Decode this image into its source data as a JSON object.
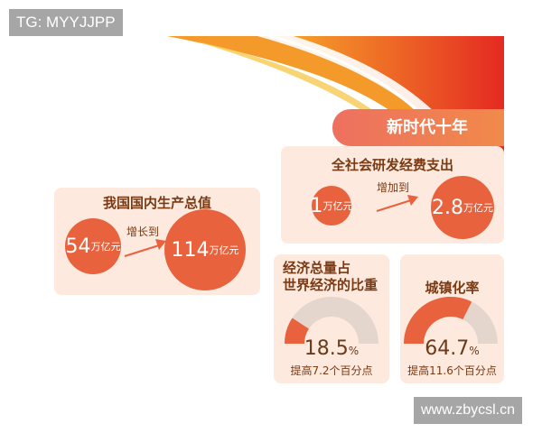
{
  "watermark_top": "TG: MYYJJPP",
  "watermark_bottom": "www.zbycsl.cn",
  "title": "新时代十年",
  "gdp": {
    "heading": "我国国内生产总值",
    "from_value": "54",
    "to_value": "114",
    "unit": "万亿元",
    "verb": "增长到"
  },
  "rd": {
    "heading": "全社会研发经费支出",
    "from_value": "1",
    "to_value": "2.8",
    "unit": "万亿元",
    "verb": "增加到"
  },
  "share": {
    "heading_line1": "经济总量占",
    "heading_line2": "世界经济的比重",
    "value": "18.5",
    "percent_sign": "%",
    "fraction": 0.185,
    "note": "提高7.2个百分点"
  },
  "urban": {
    "heading": "城镇化率",
    "value": "64.7",
    "percent_sign": "%",
    "fraction": 0.647,
    "note": "提高11.6个百分点"
  },
  "colors": {
    "accent": "#e8623e",
    "card": "#fde9dd",
    "gauge_track": "#e5d6cd",
    "text": "#7a3a14"
  }
}
